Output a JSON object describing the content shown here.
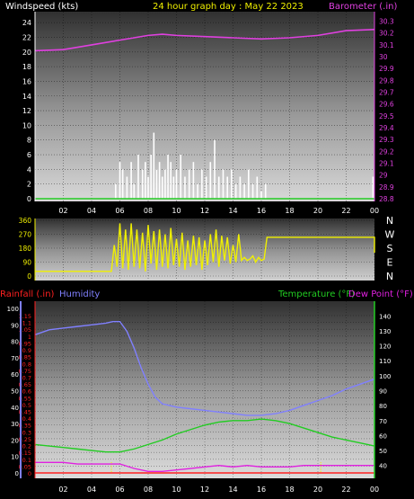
{
  "header": {
    "title": "24 hour graph day : May 22 2023",
    "left_label": "Windspeed (kts)",
    "right_label": "Barometer (.in)"
  },
  "dir_labels": [
    "N",
    "W",
    "S",
    "E",
    "N"
  ],
  "bottom_header": {
    "rain": "Rainfall (.in)",
    "hum": "Humidity",
    "temp": "Temperature (°F)",
    "dew": "Dew Point (°F)"
  },
  "colors": {
    "wind": "#ffffff",
    "gust_base": "#22cc22",
    "baro": "#e040e0",
    "dir": "#f0f000",
    "hum": "#8080ff",
    "temp": "#22cc22",
    "dew": "#e020e0",
    "rain": "#ff2020",
    "title": "#f0f000"
  },
  "chart_data": [
    {
      "type": "bar",
      "name_note": "wind",
      "x_ticks": [
        "02",
        "04",
        "06",
        "08",
        "10",
        "12",
        "14",
        "16",
        "18",
        "20",
        "22",
        "00"
      ],
      "left_ticks": [
        "0",
        "2",
        "4",
        "6",
        "8",
        "10",
        "12",
        "14",
        "16",
        "18",
        "20",
        "22",
        "24"
      ],
      "right_ticks": [
        "28.8",
        "28.9",
        "29",
        "29.1",
        "29.2",
        "29.3",
        "29.4",
        "29.5",
        "29.6",
        "29.7",
        "29.8",
        "29.9",
        "30",
        "30.1",
        "30.2",
        "30.3"
      ],
      "ylim": [
        0,
        25
      ],
      "y2lim": [
        28.8,
        30.35
      ],
      "wind_peaks": [
        [
          5.7,
          2
        ],
        [
          6.0,
          5
        ],
        [
          6.2,
          4
        ],
        [
          6.5,
          3
        ],
        [
          6.8,
          5
        ],
        [
          7.0,
          2
        ],
        [
          7.3,
          6
        ],
        [
          7.6,
          4
        ],
        [
          7.8,
          5
        ],
        [
          8.0,
          3
        ],
        [
          8.2,
          6
        ],
        [
          8.4,
          9
        ],
        [
          8.6,
          4
        ],
        [
          8.8,
          5
        ],
        [
          9.0,
          3
        ],
        [
          9.2,
          4
        ],
        [
          9.4,
          6
        ],
        [
          9.6,
          5
        ],
        [
          9.8,
          3
        ],
        [
          10.0,
          4
        ],
        [
          10.3,
          6
        ],
        [
          10.6,
          3
        ],
        [
          10.9,
          4
        ],
        [
          11.2,
          5
        ],
        [
          11.5,
          2
        ],
        [
          11.8,
          4
        ],
        [
          12.1,
          3
        ],
        [
          12.4,
          5
        ],
        [
          12.7,
          8
        ],
        [
          13.0,
          3
        ],
        [
          13.3,
          4
        ],
        [
          13.6,
          3
        ],
        [
          13.9,
          4
        ],
        [
          14.2,
          2
        ],
        [
          14.5,
          3
        ],
        [
          14.8,
          2
        ],
        [
          15.1,
          4
        ],
        [
          15.4,
          2
        ],
        [
          15.7,
          3
        ],
        [
          16.0,
          1
        ],
        [
          16.3,
          2
        ],
        [
          23.9,
          3
        ]
      ],
      "baro": [
        [
          0,
          30.05
        ],
        [
          2,
          30.06
        ],
        [
          4,
          30.1
        ],
        [
          6,
          30.14
        ],
        [
          8,
          30.18
        ],
        [
          9,
          30.19
        ],
        [
          10,
          30.18
        ],
        [
          12,
          30.17
        ],
        [
          14,
          30.16
        ],
        [
          16,
          30.15
        ],
        [
          18,
          30.16
        ],
        [
          20,
          30.18
        ],
        [
          22,
          30.22
        ],
        [
          24,
          30.23
        ]
      ]
    },
    {
      "type": "line",
      "name_note": "direction",
      "left_ticks": [
        "0",
        "90",
        "180",
        "270",
        "360"
      ],
      "ylim": [
        0,
        360
      ],
      "dir": [
        [
          0,
          30
        ],
        [
          5.4,
          30
        ],
        [
          5.6,
          200
        ],
        [
          5.8,
          60
        ],
        [
          6.0,
          340
        ],
        [
          6.2,
          50
        ],
        [
          6.4,
          300
        ],
        [
          6.6,
          40
        ],
        [
          6.8,
          340
        ],
        [
          7.0,
          60
        ],
        [
          7.2,
          300
        ],
        [
          7.4,
          50
        ],
        [
          7.6,
          280
        ],
        [
          7.8,
          30
        ],
        [
          8.0,
          330
        ],
        [
          8.2,
          80
        ],
        [
          8.4,
          290
        ],
        [
          8.6,
          40
        ],
        [
          8.8,
          300
        ],
        [
          9.0,
          60
        ],
        [
          9.2,
          270
        ],
        [
          9.4,
          50
        ],
        [
          9.6,
          310
        ],
        [
          9.8,
          70
        ],
        [
          10.0,
          240
        ],
        [
          10.2,
          60
        ],
        [
          10.4,
          280
        ],
        [
          10.6,
          40
        ],
        [
          10.8,
          230
        ],
        [
          11.0,
          60
        ],
        [
          11.2,
          260
        ],
        [
          11.4,
          70
        ],
        [
          11.6,
          250
        ],
        [
          11.8,
          40
        ],
        [
          12.0,
          230
        ],
        [
          12.2,
          70
        ],
        [
          12.4,
          270
        ],
        [
          12.6,
          90
        ],
        [
          12.8,
          300
        ],
        [
          13.0,
          60
        ],
        [
          13.2,
          260
        ],
        [
          13.4,
          100
        ],
        [
          13.6,
          250
        ],
        [
          13.8,
          80
        ],
        [
          14.0,
          200
        ],
        [
          14.2,
          90
        ],
        [
          14.4,
          270
        ],
        [
          14.6,
          100
        ],
        [
          14.8,
          120
        ],
        [
          15.0,
          100
        ],
        [
          15.2,
          110
        ],
        [
          15.4,
          130
        ],
        [
          15.6,
          90
        ],
        [
          15.8,
          120
        ],
        [
          16.0,
          100
        ],
        [
          16.2,
          110
        ],
        [
          16.4,
          250
        ],
        [
          24,
          250
        ],
        [
          24,
          150
        ]
      ]
    },
    {
      "type": "line",
      "name_note": "humidity-temperature",
      "rain_ticks": [
        "0",
        "0.05",
        "0.1",
        "0.15",
        "0.2",
        "0.25",
        "0.3",
        "0.35",
        "0.4",
        "0.45",
        "0.5",
        "0.55",
        "0.6",
        "0.65",
        "0.7",
        "0.75",
        "0.8",
        "0.85",
        "0.9",
        "0.95",
        "1",
        "1.05",
        "1.1",
        "1.15"
      ],
      "hum_ticks": [
        "0",
        "10",
        "20",
        "30",
        "40",
        "50",
        "60",
        "70",
        "80",
        "90",
        "100"
      ],
      "temp_ticks": [
        "40",
        "50",
        "60",
        "70",
        "80",
        "90",
        "100",
        "110",
        "120",
        "130",
        "140"
      ],
      "hum_lim": [
        0,
        100
      ],
      "temp_lim": [
        35,
        145
      ],
      "humidity": [
        [
          0,
          84
        ],
        [
          1,
          87
        ],
        [
          2,
          88
        ],
        [
          3,
          89
        ],
        [
          4,
          90
        ],
        [
          5,
          91
        ],
        [
          5.5,
          92
        ],
        [
          6,
          92
        ],
        [
          6.5,
          86
        ],
        [
          7,
          76
        ],
        [
          7.5,
          64
        ],
        [
          8,
          54
        ],
        [
          8.5,
          46
        ],
        [
          9,
          42
        ],
        [
          10,
          40
        ],
        [
          11,
          39
        ],
        [
          12,
          38
        ],
        [
          13,
          37
        ],
        [
          14,
          36
        ],
        [
          15,
          35
        ],
        [
          16,
          35
        ],
        [
          17,
          36
        ],
        [
          18,
          38
        ],
        [
          19,
          41
        ],
        [
          20,
          44
        ],
        [
          21,
          47
        ],
        [
          22,
          51
        ],
        [
          23,
          54
        ],
        [
          24,
          57
        ]
      ],
      "temperature": [
        [
          0,
          54
        ],
        [
          1,
          53
        ],
        [
          2,
          52
        ],
        [
          3,
          51
        ],
        [
          4,
          50
        ],
        [
          5,
          49
        ],
        [
          6,
          49
        ],
        [
          7,
          51
        ],
        [
          8,
          54
        ],
        [
          9,
          57
        ],
        [
          10,
          61
        ],
        [
          11,
          64
        ],
        [
          12,
          67
        ],
        [
          13,
          69
        ],
        [
          14,
          70
        ],
        [
          15,
          70
        ],
        [
          16,
          71
        ],
        [
          17,
          70
        ],
        [
          18,
          68
        ],
        [
          19,
          65
        ],
        [
          20,
          62
        ],
        [
          21,
          59
        ],
        [
          22,
          57
        ],
        [
          23,
          55
        ],
        [
          24,
          53
        ]
      ],
      "dewpoint": [
        [
          0,
          42
        ],
        [
          1,
          42
        ],
        [
          2,
          42
        ],
        [
          3,
          41
        ],
        [
          4,
          41
        ],
        [
          5,
          41
        ],
        [
          6,
          41
        ],
        [
          7,
          38
        ],
        [
          8,
          36
        ],
        [
          9,
          36
        ],
        [
          10,
          37
        ],
        [
          11,
          38
        ],
        [
          12,
          39
        ],
        [
          13,
          40
        ],
        [
          14,
          39
        ],
        [
          15,
          40
        ],
        [
          16,
          39
        ],
        [
          17,
          39
        ],
        [
          18,
          39
        ],
        [
          19,
          40
        ],
        [
          20,
          40
        ],
        [
          21,
          40
        ],
        [
          22,
          40
        ],
        [
          23,
          40
        ],
        [
          24,
          40
        ]
      ],
      "rain_markers": [
        5.4,
        20.2
      ]
    }
  ]
}
